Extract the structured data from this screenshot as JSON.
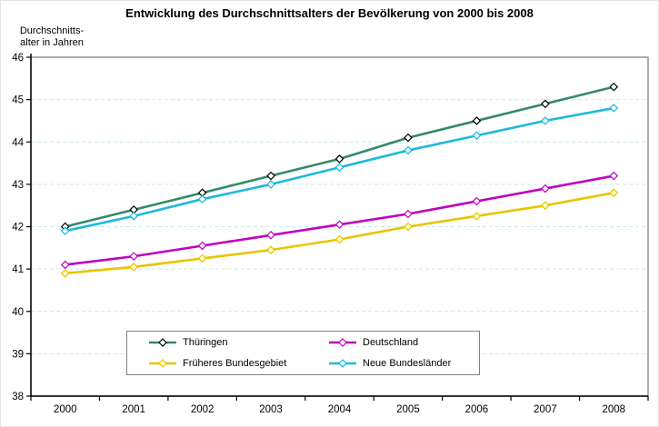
{
  "chart_data": {
    "type": "line",
    "title": "Entwicklung des Durchschnittsalters der Bevölkerung von 2000 bis 2008",
    "ylabel_line1": "Durchschnitts-",
    "ylabel_line2": "alter in Jahren",
    "xlabel": "",
    "categories": [
      "2000",
      "2001",
      "2002",
      "2003",
      "2004",
      "2005",
      "2006",
      "2007",
      "2008"
    ],
    "series": [
      {
        "name": "Thüringen",
        "color": "#338a66",
        "marker_fill": "#ffffff",
        "marker_stroke": "#000000",
        "values": [
          42.0,
          42.4,
          42.8,
          43.2,
          43.6,
          44.1,
          44.5,
          44.9,
          45.3
        ]
      },
      {
        "name": "Deutschland",
        "color": "#bf00bf",
        "marker_fill": "#ffffff",
        "marker_stroke": "#bf00bf",
        "values": [
          41.1,
          41.3,
          41.55,
          41.8,
          42.05,
          42.3,
          42.6,
          42.9,
          43.2
        ]
      },
      {
        "name": "Früheres Bundesgebiet",
        "color": "#e9c400",
        "marker_fill": "#ffffcc",
        "marker_stroke": "#e9c400",
        "values": [
          40.9,
          41.05,
          41.25,
          41.45,
          41.7,
          42.0,
          42.25,
          42.5,
          42.8
        ]
      },
      {
        "name": "Neue Bundesländer",
        "color": "#1fb9dc",
        "marker_fill": "#e6ffff",
        "marker_stroke": "#1fb9dc",
        "values": [
          41.9,
          42.25,
          42.65,
          43.0,
          43.4,
          43.8,
          44.15,
          44.5,
          44.8
        ]
      }
    ],
    "ylim": [
      38,
      46
    ],
    "yticks": [
      38,
      39,
      40,
      41,
      42,
      43,
      44,
      45,
      46
    ],
    "grid": "horizontal-dashed",
    "gridline_color": "#c9e9ef",
    "legend_position": "bottom-inside",
    "plot_border_color": "#808080",
    "axis_color": "#000000"
  }
}
